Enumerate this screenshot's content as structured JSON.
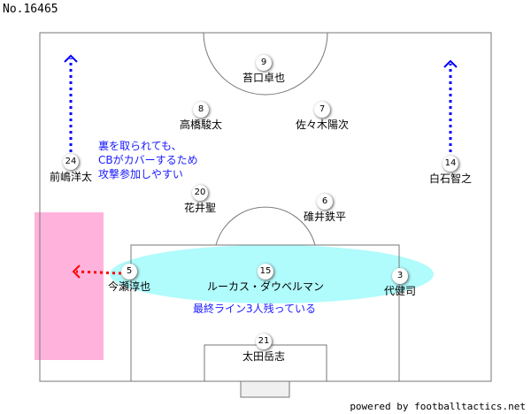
{
  "title": "No.16465",
  "credit": "powered by footballtactics.net",
  "colors": {
    "run_arrow": "#0000ff",
    "cover_arrow": "#ff0000",
    "space_zone": "#ffb3dc",
    "line_zone": "#b0fbfc",
    "note_text": "#1a1aff"
  },
  "players": [
    {
      "number": "9",
      "name": "苔口卓也"
    },
    {
      "number": "8",
      "name": "高橋駿太"
    },
    {
      "number": "7",
      "name": "佐々木陽次"
    },
    {
      "number": "24",
      "name": "前嶋洋太"
    },
    {
      "number": "14",
      "name": "白石智之"
    },
    {
      "number": "20",
      "name": "花井聖"
    },
    {
      "number": "6",
      "name": "碓井鉄平"
    },
    {
      "number": "5",
      "name": "今瀬淳也"
    },
    {
      "number": "15",
      "name": "ルーカス・ダウベルマン"
    },
    {
      "number": "3",
      "name": "代健司"
    },
    {
      "number": "21",
      "name": "太田岳志"
    }
  ],
  "notes": {
    "wingback": [
      "裏を取られても、",
      "CBがカバーするため",
      "攻撃参加しやすい"
    ],
    "backline": "最終ライン3人残っている"
  }
}
